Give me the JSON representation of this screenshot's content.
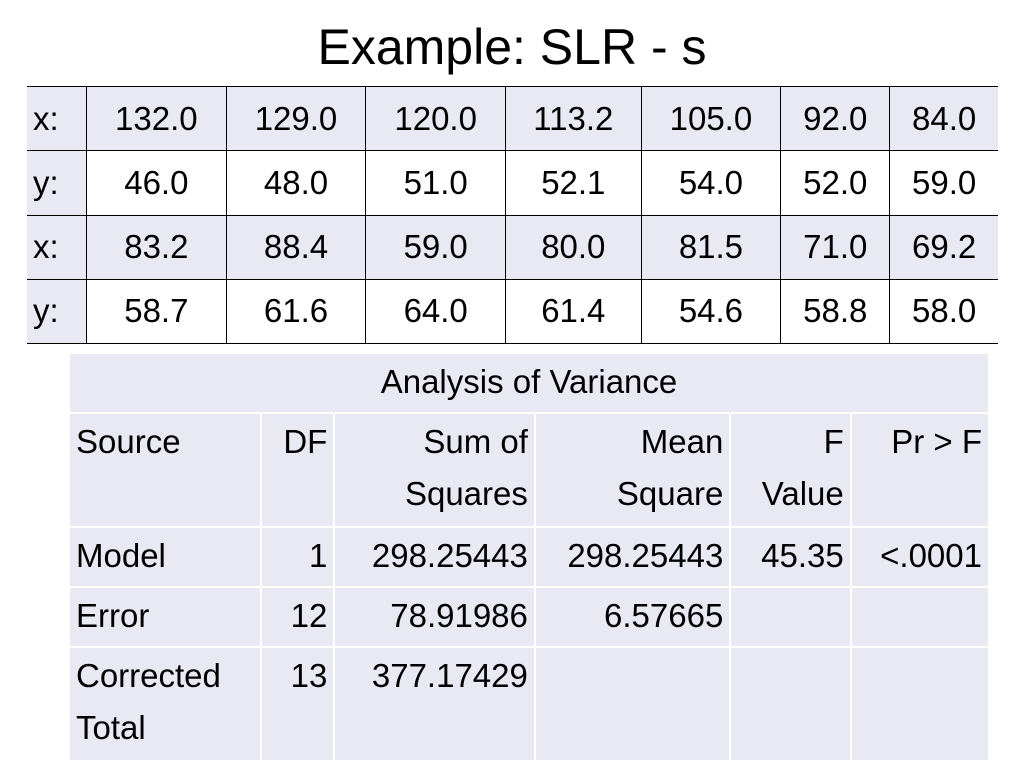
{
  "title": "Example: SLR - s",
  "data_table": {
    "rows": [
      {
        "label": "x:",
        "cells": [
          "132.0",
          "129.0",
          "120.0",
          "113.2",
          "105.0",
          "92.0",
          "84.0"
        ]
      },
      {
        "label": "y:",
        "cells": [
          "46.0",
          "48.0",
          "51.0",
          "52.1",
          "54.0",
          "52.0",
          "59.0"
        ]
      },
      {
        "label": "x:",
        "cells": [
          "83.2",
          "88.4",
          "59.0",
          "80.0",
          "81.5",
          "71.0",
          "69.2"
        ]
      },
      {
        "label": "y:",
        "cells": [
          "58.7",
          "61.6",
          "64.0",
          "61.4",
          "54.6",
          "58.8",
          "58.0"
        ]
      }
    ]
  },
  "anova": {
    "title": "Analysis of Variance",
    "header": [
      [
        "Source"
      ],
      [
        "DF"
      ],
      [
        "Sum of",
        "Squares"
      ],
      [
        "Mean",
        "Square"
      ],
      [
        "F",
        "Value"
      ],
      [
        "Pr > F"
      ]
    ],
    "rows": [
      [
        [
          "Model"
        ],
        [
          "1"
        ],
        [
          "298.25443"
        ],
        [
          "298.25443"
        ],
        [
          "45.35"
        ],
        [
          "<.0001"
        ]
      ],
      [
        [
          "Error"
        ],
        [
          "12"
        ],
        [
          "78.91986"
        ],
        [
          "6.57665"
        ],
        [],
        []
      ],
      [
        [
          "Corrected",
          "Total"
        ],
        [
          "13"
        ],
        [
          "377.17429"
        ],
        [],
        [],
        []
      ]
    ]
  }
}
